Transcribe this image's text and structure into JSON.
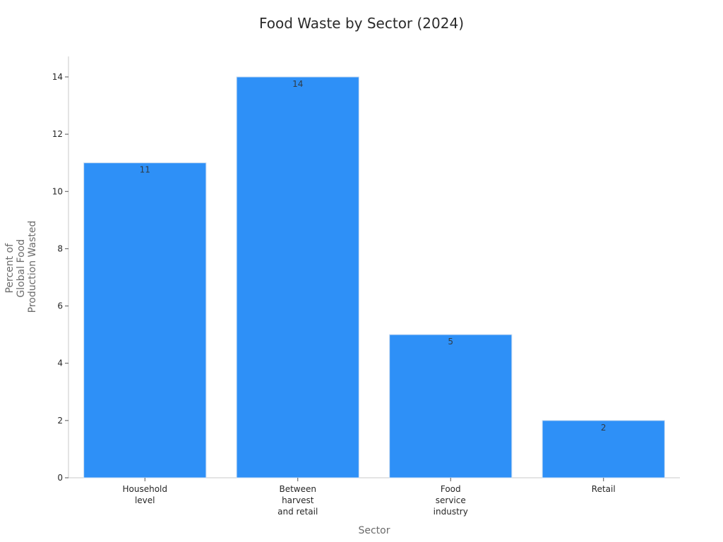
{
  "chart_data": {
    "type": "bar",
    "title": "Food Waste by Sector (2024)",
    "xlabel": "Sector",
    "ylabel": [
      "Percent of",
      "Global Food",
      "Production Wasted"
    ],
    "categories": [
      [
        "Household",
        "level"
      ],
      [
        "Between",
        "harvest",
        "and retail"
      ],
      [
        "Food",
        "service",
        "industry"
      ],
      [
        "Retail"
      ]
    ],
    "values": [
      11,
      14,
      5,
      2
    ],
    "data_labels": [
      "11",
      "14",
      "5",
      "2"
    ],
    "ylim": [
      0,
      14
    ],
    "yticks": [
      0,
      2,
      4,
      6,
      8,
      10,
      12,
      14
    ],
    "grid": false,
    "legend": "none",
    "colors": {
      "bar": "#2e90f7",
      "bar_edge": "#c9dcf2",
      "axis": "#c8c8c8"
    }
  }
}
